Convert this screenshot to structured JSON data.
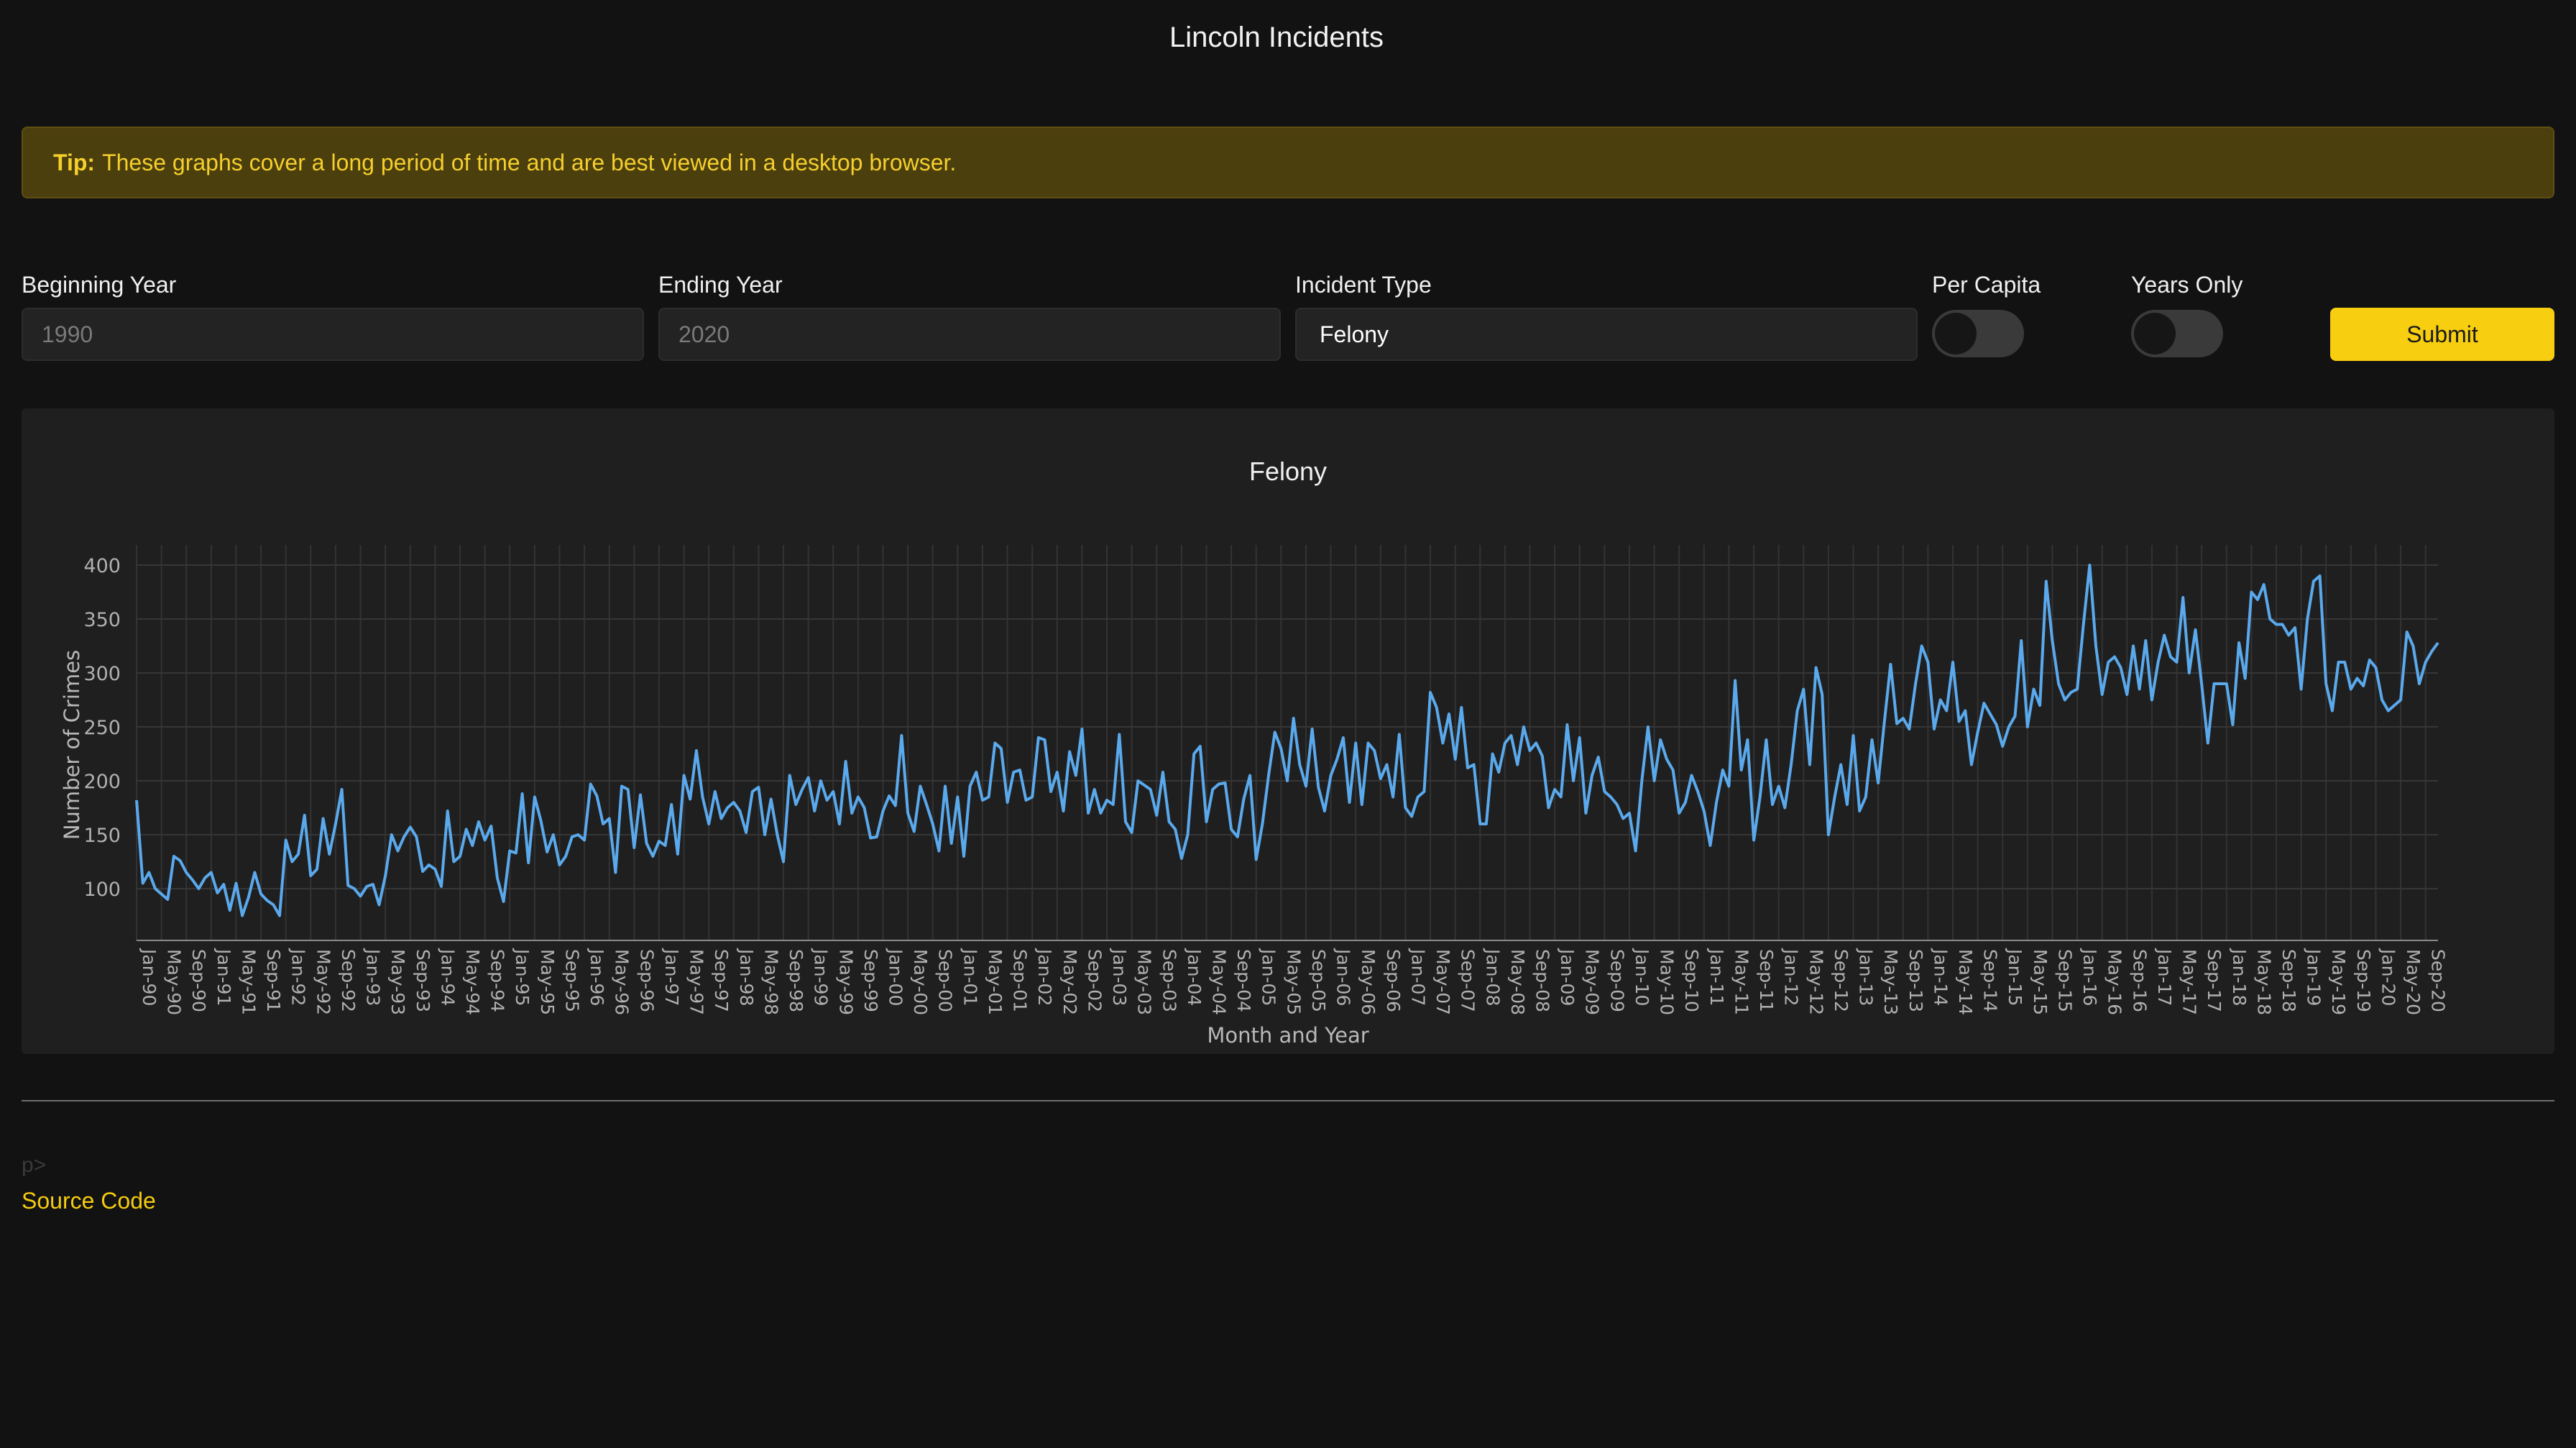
{
  "page": {
    "title": "Lincoln Incidents"
  },
  "tip": {
    "label": "Tip:",
    "text": "These graphs cover a long period of time and are best viewed in a desktop browser."
  },
  "form": {
    "beginning_year": {
      "label": "Beginning Year",
      "placeholder": "1990"
    },
    "ending_year": {
      "label": "Ending Year",
      "placeholder": "2020"
    },
    "incident_type": {
      "label": "Incident Type",
      "value": "Felony"
    },
    "per_capita": {
      "label": "Per Capita",
      "on": false
    },
    "years_only": {
      "label": "Years Only",
      "on": false
    },
    "submit_label": "Submit"
  },
  "chart_data": {
    "type": "line",
    "title": "Felony",
    "xlabel": "Month and Year",
    "ylabel": "Number of Crimes",
    "ylim": [
      52,
      412
    ],
    "yticks": [
      100,
      150,
      200,
      250,
      300,
      350,
      400
    ],
    "x_start": "Jan-90",
    "x_ticks": [
      "Jan-90",
      "May-90",
      "Sep-90",
      "Jan-91",
      "May-91",
      "Sep-91",
      "Jan-92",
      "May-92",
      "Sep-92",
      "Jan-93",
      "May-93",
      "Sep-93",
      "Jan-94",
      "May-94",
      "Sep-94",
      "Jan-95",
      "May-95",
      "Sep-95",
      "Jan-96",
      "May-96",
      "Sep-96",
      "Jan-97",
      "May-97",
      "Sep-97",
      "Jan-98",
      "May-98",
      "Sep-98",
      "Jan-99",
      "May-99",
      "Sep-99",
      "Jan-00",
      "May-00",
      "Sep-00",
      "Jan-01",
      "May-01",
      "Sep-01",
      "Jan-02",
      "May-02",
      "Sep-02",
      "Jan-03",
      "May-03",
      "Sep-03",
      "Jan-04",
      "May-04",
      "Sep-04",
      "Jan-05",
      "May-05",
      "Sep-05",
      "Jan-06",
      "May-06",
      "Sep-06",
      "Jan-07",
      "May-07",
      "Sep-07",
      "Jan-08",
      "May-08",
      "Sep-08",
      "Jan-09",
      "May-09",
      "Sep-09",
      "Jan-10",
      "May-10",
      "Sep-10",
      "Jan-11",
      "May-11",
      "Sep-11",
      "Jan-12",
      "May-12",
      "Sep-12",
      "Jan-13",
      "May-13",
      "Sep-13",
      "Jan-14",
      "May-14",
      "Sep-14",
      "Jan-15",
      "May-15",
      "Sep-15",
      "Jan-16",
      "May-16",
      "Sep-16",
      "Jan-17",
      "May-17",
      "Sep-17",
      "Jan-18",
      "May-18",
      "Sep-18",
      "Jan-19",
      "May-19",
      "Sep-19",
      "Jan-20",
      "May-20",
      "Sep-20"
    ],
    "series": [
      {
        "name": "Felony",
        "color": "#5aa9ec",
        "values": [
          182,
          105,
          115,
          100,
          95,
          90,
          130,
          126,
          115,
          108,
          100,
          110,
          115,
          96,
          104,
          80,
          105,
          75,
          92,
          115,
          95,
          89,
          85,
          75,
          145,
          125,
          132,
          168,
          112,
          118,
          165,
          132,
          160,
          192,
          103,
          100,
          93,
          102,
          104,
          85,
          112,
          150,
          135,
          148,
          157,
          148,
          116,
          122,
          118,
          102,
          172,
          125,
          130,
          155,
          140,
          162,
          145,
          158,
          110,
          88,
          135,
          133,
          188,
          124,
          185,
          163,
          134,
          150,
          122,
          130,
          148,
          150,
          145,
          197,
          186,
          160,
          165,
          115,
          195,
          192,
          138,
          187,
          142,
          130,
          144,
          140,
          178,
          132,
          205,
          183,
          228,
          185,
          160,
          190,
          165,
          175,
          180,
          172,
          152,
          190,
          194,
          150,
          183,
          150,
          125,
          205,
          178,
          192,
          203,
          172,
          200,
          182,
          190,
          160,
          218,
          170,
          185,
          175,
          147,
          148,
          172,
          186,
          177,
          242,
          170,
          153,
          195,
          178,
          160,
          135,
          195,
          142,
          185,
          130,
          195,
          208,
          182,
          185,
          235,
          230,
          180,
          208,
          210,
          182,
          185,
          240,
          238,
          190,
          208,
          172,
          227,
          205,
          248,
          170,
          192,
          170,
          182,
          178,
          243,
          162,
          152,
          200,
          196,
          192,
          168,
          208,
          162,
          155,
          128,
          150,
          225,
          232,
          162,
          192,
          197,
          198,
          155,
          148,
          183,
          205,
          127,
          160,
          205,
          245,
          230,
          200,
          258,
          215,
          195,
          248,
          194,
          172,
          205,
          220,
          240,
          180,
          235,
          178,
          235,
          228,
          202,
          215,
          185,
          243,
          175,
          167,
          185,
          190,
          282,
          268,
          235,
          262,
          220,
          268,
          212,
          215,
          160,
          160,
          225,
          208,
          235,
          242,
          215,
          250,
          228,
          235,
          223,
          175,
          192,
          185,
          252,
          200,
          240,
          170,
          205,
          222,
          190,
          185,
          178,
          165,
          170,
          135,
          200,
          250,
          200,
          238,
          220,
          210,
          170,
          180,
          205,
          190,
          172,
          140,
          180,
          210,
          195,
          293,
          210,
          238,
          145,
          185,
          238,
          178,
          195,
          175,
          215,
          265,
          285,
          215,
          305,
          280,
          150,
          185,
          215,
          178,
          242,
          172,
          185,
          238,
          198,
          255,
          308,
          253,
          258,
          248,
          290,
          325,
          310,
          248,
          275,
          265,
          310,
          255,
          265,
          215,
          245,
          272,
          262,
          252,
          232,
          250,
          260,
          330,
          250,
          285,
          270,
          385,
          330,
          290,
          275,
          282,
          285,
          345,
          400,
          325,
          280,
          310,
          315,
          305,
          280,
          325,
          285,
          330,
          275,
          310,
          335,
          315,
          310,
          370,
          300,
          340,
          290,
          235,
          290,
          290,
          290,
          252,
          328,
          295,
          375,
          368,
          382,
          350,
          345,
          345,
          335,
          342,
          285,
          350,
          385,
          390,
          290,
          265,
          310,
          310,
          285,
          295,
          288,
          312,
          305,
          275,
          265,
          270,
          275,
          338,
          325,
          290,
          310,
          320,
          328
        ]
      }
    ]
  },
  "footer": {
    "stray_text": "p>",
    "link_label": "Source Code"
  }
}
